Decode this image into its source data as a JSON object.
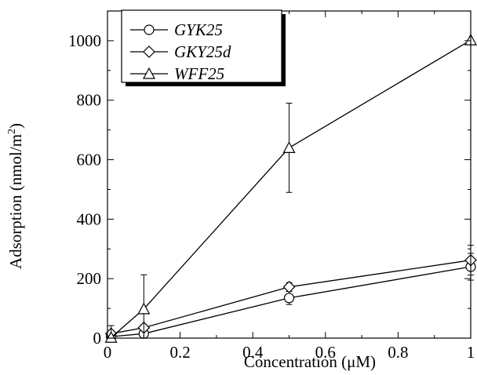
{
  "chart_data": {
    "type": "line",
    "title": "",
    "xlabel": "Concentration (μM)",
    "ylabel": "Adsorption (nmol/m²)",
    "ylabel_parts": {
      "main": "Adsorption (nmol/m",
      "superscript": "2",
      "end": ")"
    },
    "xlim": [
      0,
      1
    ],
    "ylim": [
      0,
      1100
    ],
    "xticks": [
      0,
      0.2,
      0.4,
      0.6,
      0.8,
      1
    ],
    "xtick_labels": [
      "0",
      "0.2",
      "0.4",
      "0.6",
      "0.8",
      "1"
    ],
    "yticks": [
      0,
      200,
      400,
      600,
      800,
      1000
    ],
    "ytick_labels": [
      "0",
      "200",
      "400",
      "600",
      "800",
      "1000"
    ],
    "grid": false,
    "legend_position": "top-left",
    "series": [
      {
        "name": "GYK25",
        "marker": "circle",
        "x": [
          0.01,
          0.1,
          0.5,
          1.0
        ],
        "y": [
          5,
          15,
          135,
          240
        ],
        "err": [
          5,
          8,
          22,
          45
        ]
      },
      {
        "name": "GKY25d",
        "marker": "diamond",
        "x": [
          0.01,
          0.1,
          0.5,
          1.0
        ],
        "y": [
          15,
          35,
          172,
          262
        ],
        "err": [
          8,
          10,
          15,
          50
        ]
      },
      {
        "name": "WFF25",
        "marker": "triangle",
        "x": [
          0.01,
          0.1,
          0.5,
          1.0
        ],
        "y": [
          2,
          98,
          640,
          1002
        ],
        "err": [
          40,
          115,
          150,
          0
        ]
      }
    ]
  }
}
